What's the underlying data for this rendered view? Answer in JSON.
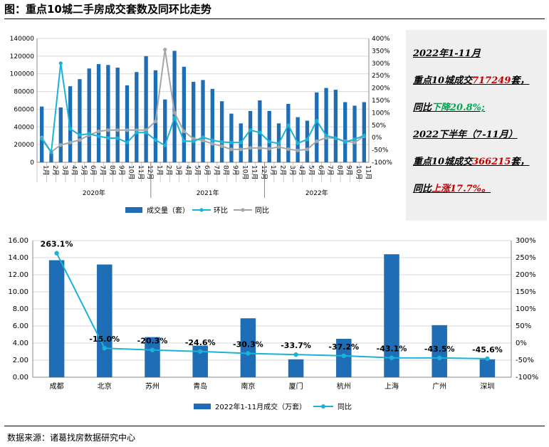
{
  "figure_title": "图：重点10城二手房成交套数及同环比走势",
  "source_text": "数据来源：诸葛找房数据研究中心",
  "summary": {
    "line1": "2022年1-11月",
    "line2_prefix": "重点10城成交",
    "line2_value": "717249",
    "line2_suffix": "套，",
    "line3_prefix": "同比",
    "line3_value": "下降20.8%;",
    "line4": "2022下半年（7-11月）",
    "line5_prefix": "重点10城成交",
    "line5_value": "366215",
    "line5_suffix": "套，",
    "line6_prefix": "同比",
    "line6_value": "上涨17.7%。"
  },
  "colors": {
    "bar": "#1f6eb5",
    "mom": "#1ab2d8",
    "yoy": "#a6a6a6",
    "grid": "#d9d9d9"
  },
  "chart_data": [
    {
      "type": "bar",
      "categories": [
        "1月",
        "2月",
        "3月",
        "4月",
        "5月",
        "6月",
        "7月",
        "8月",
        "9月",
        "10月",
        "11月",
        "12月",
        "1月",
        "2月",
        "3月",
        "4月",
        "5月",
        "6月",
        "7月",
        "8月",
        "9月",
        "10月",
        "11月",
        "12月",
        "1月",
        "2月",
        "3月",
        "4月",
        "5月",
        "6月",
        "7月",
        "8月",
        "9月",
        "10月",
        "11月"
      ],
      "year_labels": [
        "2020年",
        "2021年",
        "2022年"
      ],
      "series": [
        {
          "name": "成交量（套）",
          "axis": "left",
          "values": [
            63000,
            10000,
            62000,
            86000,
            94000,
            106000,
            111000,
            110000,
            107000,
            87000,
            102000,
            120000,
            104000,
            71000,
            126000,
            108000,
            91000,
            93000,
            83000,
            69000,
            55000,
            44000,
            58000,
            70000,
            58000,
            44000,
            66000,
            51000,
            47000,
            79000,
            84000,
            82000,
            68000,
            64000,
            68000
          ]
        },
        {
          "name": "环比",
          "axis": "right",
          "values": [
            -5,
            -60,
            300,
            35,
            10,
            15,
            5,
            -2,
            -3,
            -20,
            20,
            20,
            -10,
            -32,
            80,
            -14,
            -16,
            1,
            -11,
            -18,
            -20,
            -20,
            30,
            20,
            -17,
            -24,
            50,
            -23,
            -8,
            68,
            8,
            -2,
            -18,
            -7,
            8
          ]
        },
        {
          "name": "同比",
          "axis": "right",
          "values": [
            0,
            -58,
            -30,
            -20,
            -10,
            10,
            25,
            30,
            30,
            30,
            30,
            30,
            65,
            355,
            100,
            25,
            -5,
            -12,
            -25,
            -35,
            -48,
            -48,
            -42,
            -42,
            -45,
            -38,
            -47,
            -52,
            -48,
            -15,
            -1,
            -3,
            -15,
            -20,
            5
          ]
        }
      ],
      "left_ticks": [
        "0",
        "20000",
        "40000",
        "60000",
        "80000",
        "100000",
        "120000",
        "140000"
      ],
      "right_ticks": [
        "-100%",
        "-50%",
        "0%",
        "50%",
        "100%",
        "150%",
        "200%",
        "250%",
        "300%",
        "350%",
        "400%"
      ],
      "ylim_left": [
        0,
        140000
      ],
      "ylim_right": [
        -100,
        400
      ]
    },
    {
      "type": "bar",
      "categories": [
        "成都",
        "北京",
        "苏州",
        "青岛",
        "南京",
        "厦门",
        "杭州",
        "上海",
        "广州",
        "深圳"
      ],
      "series": [
        {
          "name": "2022年1-11月成交（万套）",
          "axis": "left",
          "values": [
            13.7,
            13.2,
            4.7,
            3.7,
            6.9,
            2.1,
            4.5,
            14.4,
            6.1,
            2.1
          ]
        },
        {
          "name": "同比",
          "axis": "right",
          "values": [
            263.1,
            -15.0,
            -20.3,
            -24.6,
            -30.3,
            -33.7,
            -37.2,
            -43.1,
            -43.5,
            -45.6
          ]
        }
      ],
      "data_labels": [
        "263.1%",
        "-15.0%",
        "-20.3%",
        "-24.6%",
        "-30.3%",
        "-33.7%",
        "-37.2%",
        "-43.1%",
        "-43.5%",
        "-45.6%"
      ],
      "left_ticks": [
        "0.00",
        "2.00",
        "4.00",
        "6.00",
        "8.00",
        "10.00",
        "12.00",
        "14.00",
        "16.00"
      ],
      "right_ticks": [
        "-100%",
        "-50%",
        "0%",
        "50%",
        "100%",
        "150%",
        "200%",
        "250%",
        "300%"
      ],
      "ylim_left": [
        0,
        16
      ],
      "ylim_right": [
        -100,
        300
      ]
    }
  ]
}
